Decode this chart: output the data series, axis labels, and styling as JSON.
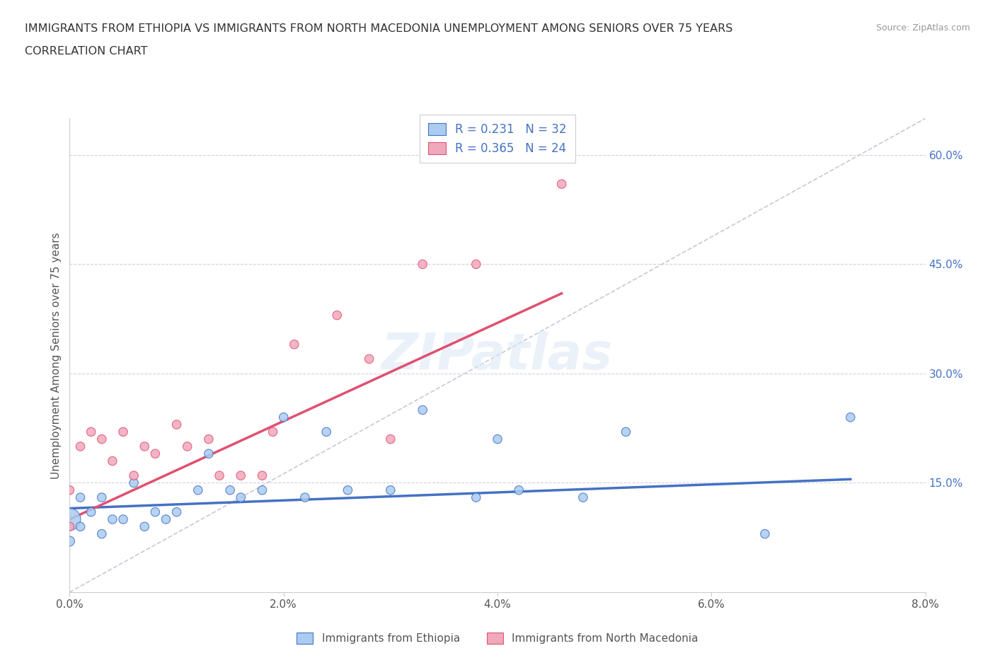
{
  "title_line1": "IMMIGRANTS FROM ETHIOPIA VS IMMIGRANTS FROM NORTH MACEDONIA UNEMPLOYMENT AMONG SENIORS OVER 75 YEARS",
  "title_line2": "CORRELATION CHART",
  "source": "Source: ZipAtlas.com",
  "ylabel": "Unemployment Among Seniors over 75 years",
  "xlim": [
    0.0,
    0.08
  ],
  "ylim": [
    0.0,
    0.65
  ],
  "xticks": [
    0.0,
    0.02,
    0.04,
    0.06,
    0.08
  ],
  "xticklabels": [
    "0.0%",
    "2.0%",
    "4.0%",
    "6.0%",
    "8.0%"
  ],
  "yticks_right": [
    0.15,
    0.3,
    0.45,
    0.6
  ],
  "yticklabels_right": [
    "15.0%",
    "30.0%",
    "45.0%",
    "60.0%"
  ],
  "legend_label1": "Immigrants from Ethiopia",
  "legend_label2": "Immigrants from North Macedonia",
  "R1": 0.231,
  "N1": 32,
  "R2": 0.365,
  "N2": 24,
  "color1": "#aaccf0",
  "color2": "#f0a8bc",
  "trendline_color1": "#4472c4",
  "trendline_color2": "#e05070",
  "diag_color": "#c8c8d8",
  "background_color": "#ffffff",
  "watermark": "ZIPatlas",
  "ethiopia_x": [
    0.0,
    0.0,
    0.001,
    0.001,
    0.002,
    0.003,
    0.003,
    0.004,
    0.005,
    0.006,
    0.007,
    0.008,
    0.009,
    0.01,
    0.012,
    0.013,
    0.015,
    0.016,
    0.018,
    0.02,
    0.022,
    0.024,
    0.026,
    0.03,
    0.033,
    0.038,
    0.04,
    0.042,
    0.048,
    0.052,
    0.065,
    0.073
  ],
  "ethiopia_y": [
    0.1,
    0.07,
    0.09,
    0.13,
    0.11,
    0.13,
    0.08,
    0.1,
    0.1,
    0.15,
    0.09,
    0.11,
    0.1,
    0.11,
    0.14,
    0.19,
    0.14,
    0.13,
    0.14,
    0.24,
    0.13,
    0.22,
    0.14,
    0.14,
    0.25,
    0.13,
    0.21,
    0.14,
    0.13,
    0.22,
    0.08,
    0.24
  ],
  "ethiopia_size": [
    500,
    100,
    80,
    80,
    80,
    80,
    80,
    80,
    80,
    80,
    80,
    80,
    80,
    80,
    80,
    80,
    80,
    80,
    80,
    80,
    80,
    80,
    80,
    80,
    80,
    80,
    80,
    80,
    80,
    80,
    80,
    80
  ],
  "ethiopia_trendline_x": [
    0.0,
    0.073
  ],
  "ethiopia_trendline_y": [
    0.115,
    0.155
  ],
  "macedonia_x": [
    0.0,
    0.0,
    0.001,
    0.002,
    0.003,
    0.004,
    0.005,
    0.006,
    0.007,
    0.008,
    0.01,
    0.011,
    0.013,
    0.014,
    0.016,
    0.018,
    0.019,
    0.021,
    0.025,
    0.028,
    0.03,
    0.033,
    0.038,
    0.046
  ],
  "macedonia_y": [
    0.09,
    0.14,
    0.2,
    0.22,
    0.21,
    0.18,
    0.22,
    0.16,
    0.2,
    0.19,
    0.23,
    0.2,
    0.21,
    0.16,
    0.16,
    0.16,
    0.22,
    0.34,
    0.38,
    0.32,
    0.21,
    0.45,
    0.45,
    0.56
  ],
  "macedonia_size": [
    80,
    80,
    80,
    80,
    80,
    80,
    80,
    80,
    80,
    80,
    80,
    80,
    80,
    80,
    80,
    80,
    80,
    80,
    80,
    80,
    80,
    80,
    80,
    80
  ],
  "macedonia_trendline_x": [
    0.0,
    0.046
  ],
  "macedonia_trendline_y": [
    0.1,
    0.41
  ]
}
